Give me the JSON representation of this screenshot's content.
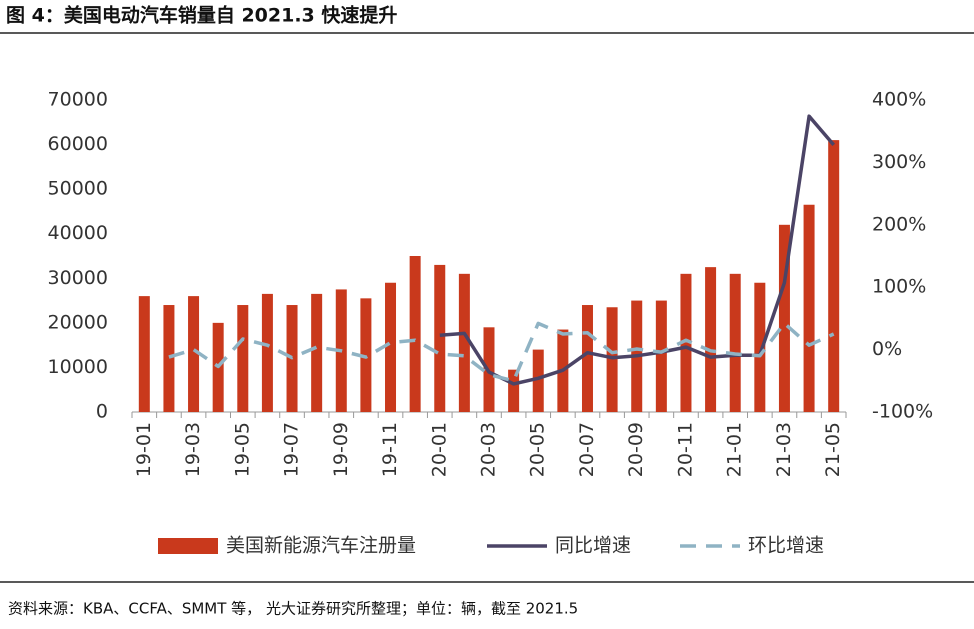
{
  "chart_data": {
    "type": "bar_line",
    "title": "图 4：美国电动汽车销量自 2021.3 快速提升",
    "source": "资料来源：KBA、CCFA、SMMT 等，  光大证券研究所整理；单位：辆，截至 2021.5",
    "categories": [
      "19-01",
      null,
      "19-03",
      null,
      "19-05",
      null,
      "19-07",
      null,
      "19-09",
      null,
      "19-11",
      null,
      "20-01",
      null,
      "20-03",
      null,
      "20-05",
      null,
      "20-07",
      null,
      "20-09",
      null,
      "20-11",
      null,
      "21-01",
      null,
      "21-03",
      null,
      "21-05"
    ],
    "series": [
      {
        "name": "美国新能源汽车注册量",
        "color": "#c9391c",
        "kind": "bar",
        "axis": "y",
        "values": [
          26000,
          24000,
          26000,
          20000,
          24000,
          26500,
          24000,
          26500,
          27500,
          25500,
          29000,
          35000,
          33000,
          31000,
          19000,
          9500,
          14000,
          18500,
          24000,
          23500,
          25000,
          25000,
          31000,
          32500,
          31000,
          29000,
          42000,
          46500,
          61000
        ]
      },
      {
        "name": "同比增速",
        "color": "#4b4466",
        "kind": "line",
        "axis": "y2",
        "values": [
          null,
          null,
          null,
          null,
          null,
          null,
          null,
          null,
          null,
          null,
          null,
          null,
          23,
          26,
          -36,
          -55,
          -46,
          -33,
          -5,
          -13,
          -10,
          -4,
          4,
          -12,
          -9,
          -9,
          107,
          374,
          328
        ]
      },
      {
        "name": "环比增速",
        "color": "#8fb3c4",
        "kind": "dashed",
        "axis": "y2",
        "values": [
          null,
          -12,
          0,
          -27,
          17,
          7,
          -13,
          4,
          -2,
          -12,
          11,
          15,
          -7,
          -10,
          -40,
          -50,
          42,
          25,
          27,
          -5,
          1,
          -4,
          15,
          -2,
          -7,
          -10,
          42,
          7,
          25
        ]
      }
    ],
    "ylim": [
      0,
      70000
    ],
    "yticks": [
      0,
      10000,
      20000,
      30000,
      40000,
      50000,
      60000,
      70000
    ],
    "y2lim": [
      -100,
      400
    ],
    "y2ticks": [
      {
        "value": -100,
        "label": "-100%"
      },
      {
        "value": 0,
        "label": "0%"
      },
      {
        "value": 100,
        "label": "100%"
      },
      {
        "value": 200,
        "label": "200%"
      },
      {
        "value": 300,
        "label": "300%"
      },
      {
        "value": 400,
        "label": "400%"
      }
    ]
  }
}
